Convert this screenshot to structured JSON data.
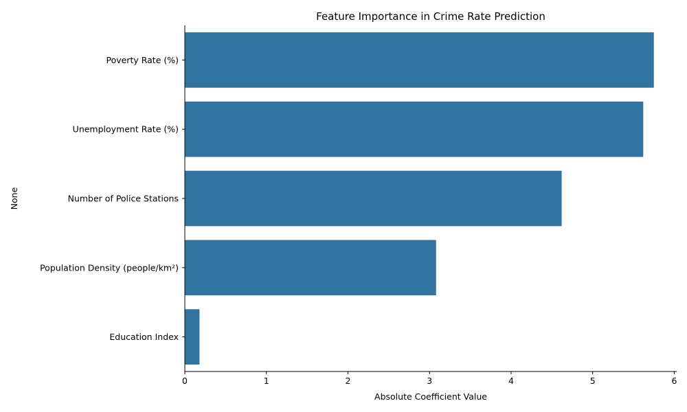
{
  "chart_data": {
    "type": "bar",
    "orientation": "horizontal",
    "title": "Feature Importance in Crime Rate Prediction",
    "xlabel": "Absolute Coefficient Value",
    "ylabel": "None",
    "categories": [
      "Poverty Rate (%)",
      "Unemployment Rate (%)",
      "Number of Police Stations",
      "Population Density (people/km²)",
      "Education Index"
    ],
    "values": [
      5.75,
      5.62,
      4.62,
      3.08,
      0.18
    ],
    "xlim": [
      0,
      6.03
    ],
    "xticks": [
      "0",
      "1",
      "2",
      "3",
      "4",
      "5",
      "6"
    ],
    "bar_color": "#3274a1",
    "grid": false,
    "legend": "none"
  }
}
